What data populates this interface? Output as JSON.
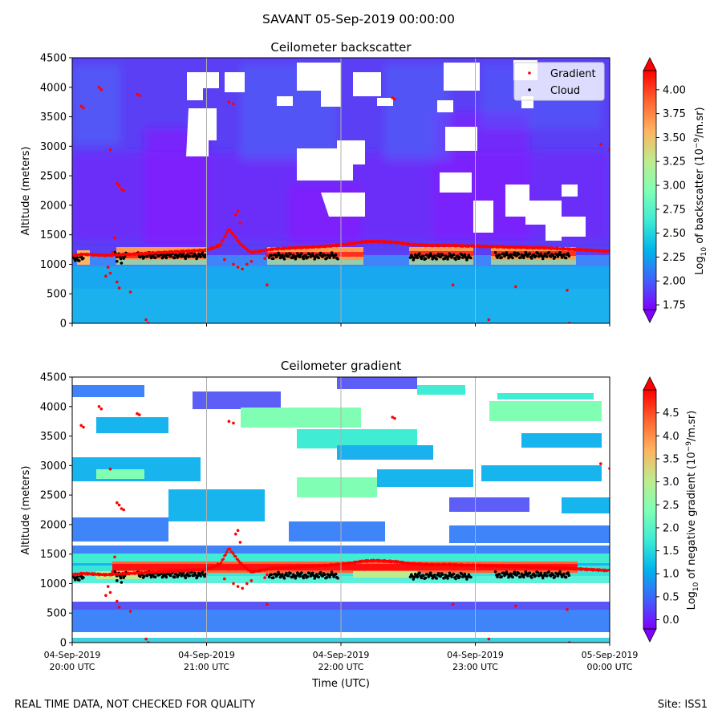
{
  "suptitle": "SAVANT 05-Sep-2019 00:00:00",
  "footer_left": "REAL TIME DATA, NOT CHECKED FOR QUALITY",
  "footer_right": "Site: ISS1",
  "colors": {
    "cloud_marker": "#000000",
    "gradient_marker": "#ff0000",
    "missing": "#ffffff"
  },
  "chart_data": [
    {
      "type": "heatmap",
      "title": "Ceilometer backscatter",
      "xlabel": "",
      "ylabel": "Altitude (meters)",
      "xlim": [
        0,
        240
      ],
      "ylim": [
        0,
        4500
      ],
      "yticks": [
        0,
        500,
        1000,
        1500,
        2000,
        2500,
        3000,
        3500,
        4000,
        4500
      ],
      "xticks": [
        0,
        60,
        120,
        180,
        240
      ],
      "colorbar": {
        "label_parts": [
          "Log",
          "10",
          " of backscatter (10",
          "−9",
          "/m.sr)"
        ],
        "range": [
          1.7,
          4.2
        ],
        "ticks": [
          "1.75",
          "2.00",
          "2.25",
          "2.50",
          "2.75",
          "3.00",
          "3.25",
          "3.50",
          "3.75",
          "4.00"
        ],
        "tick_values": [
          1.75,
          2.0,
          2.25,
          2.5,
          2.75,
          3.0,
          3.25,
          3.5,
          3.75,
          4.0
        ],
        "colormap": "rainbow"
      },
      "legend": {
        "placement": "top-right",
        "entries": [
          "Gradient",
          "Cloud"
        ]
      }
    },
    {
      "type": "heatmap",
      "title": "Ceilometer gradient",
      "xlabel": "Time (UTC)",
      "ylabel": "Altitude (meters)",
      "xlim": [
        0,
        240
      ],
      "ylim": [
        0,
        4500
      ],
      "yticks": [
        0,
        500,
        1000,
        1500,
        2000,
        2500,
        3000,
        3500,
        4000,
        4500
      ],
      "xticks": [
        0,
        60,
        120,
        180,
        240
      ],
      "xticklabels": [
        [
          "04-Sep-2019",
          "20:00 UTC"
        ],
        [
          "04-Sep-2019",
          "21:00 UTC"
        ],
        [
          "04-Sep-2019",
          "22:00 UTC"
        ],
        [
          "04-Sep-2019",
          "23:00 UTC"
        ],
        [
          "05-Sep-2019",
          "00:00 UTC"
        ]
      ],
      "colorbar": {
        "label_parts": [
          "Log",
          "10",
          " of negative gradient (10",
          "−9",
          "/m.sr)"
        ],
        "range": [
          -0.2,
          5.0
        ],
        "ticks": [
          "0.0",
          "0.5",
          "1.0",
          "1.5",
          "2.0",
          "2.5",
          "3.0",
          "3.5",
          "4.0",
          "4.5"
        ],
        "tick_values": [
          0.0,
          0.5,
          1.0,
          1.5,
          2.0,
          2.5,
          3.0,
          3.5,
          4.0,
          4.5
        ],
        "colormap": "rainbow"
      }
    }
  ],
  "series": {
    "gradient_heights": {
      "t": [
        0,
        5,
        10,
        15,
        20,
        25,
        30,
        35,
        40,
        45,
        50,
        55,
        60,
        63,
        66,
        70,
        72,
        75,
        78,
        80,
        85,
        90,
        95,
        100,
        105,
        110,
        115,
        120,
        125,
        130,
        135,
        140,
        145,
        150,
        155,
        160,
        165,
        170,
        175,
        180,
        185,
        190,
        195,
        200,
        205,
        210,
        215,
        220,
        225,
        230,
        235,
        240
      ],
      "z": [
        1150,
        1170,
        1160,
        1150,
        1160,
        1170,
        1180,
        1190,
        1200,
        1210,
        1220,
        1230,
        1240,
        1280,
        1320,
        1600,
        1500,
        1350,
        1250,
        1200,
        1230,
        1260,
        1270,
        1280,
        1290,
        1300,
        1310,
        1330,
        1350,
        1380,
        1390,
        1380,
        1370,
        1340,
        1330,
        1320,
        1320,
        1320,
        1310,
        1310,
        1300,
        1300,
        1290,
        1290,
        1280,
        1280,
        1270,
        1260,
        1250,
        1240,
        1230,
        1220
      ]
    },
    "gradient_outliers": [
      [
        12,
        4000
      ],
      [
        13,
        3960
      ],
      [
        4,
        3680
      ],
      [
        5,
        3650
      ],
      [
        29,
        3880
      ],
      [
        30,
        3860
      ],
      [
        70,
        3750
      ],
      [
        72,
        3720
      ],
      [
        143,
        3820
      ],
      [
        144,
        3800
      ],
      [
        17,
        2940
      ],
      [
        20,
        2370
      ],
      [
        21,
        2330
      ],
      [
        22,
        2270
      ],
      [
        23,
        2250
      ],
      [
        19,
        1450
      ],
      [
        18,
        1200
      ],
      [
        16,
        950
      ],
      [
        17,
        850
      ],
      [
        15,
        800
      ],
      [
        20,
        700
      ],
      [
        21,
        600
      ],
      [
        26,
        530
      ],
      [
        33,
        60
      ],
      [
        34,
        0
      ],
      [
        65,
        1330
      ],
      [
        68,
        1080
      ],
      [
        72,
        1000
      ],
      [
        74,
        950
      ],
      [
        76,
        920
      ],
      [
        78,
        1000
      ],
      [
        80,
        1050
      ],
      [
        86,
        1100
      ],
      [
        87,
        1150
      ],
      [
        73,
        1840
      ],
      [
        74,
        1900
      ],
      [
        75,
        1700
      ],
      [
        87,
        650
      ],
      [
        170,
        650
      ],
      [
        186,
        60
      ],
      [
        198,
        620
      ],
      [
        221,
        560
      ],
      [
        222,
        0
      ],
      [
        236,
        3030
      ],
      [
        240,
        2950
      ]
    ],
    "cloud_segments": [
      [
        0,
        5,
        1100
      ],
      [
        19,
        24,
        1150
      ],
      [
        29,
        60,
        1150
      ],
      [
        88,
        119,
        1140
      ],
      [
        151,
        178,
        1130
      ],
      [
        189,
        222,
        1150
      ]
    ],
    "cloud_extra": [
      [
        20,
        1050
      ],
      [
        22,
        1020
      ],
      [
        23,
        1100
      ],
      [
        24,
        1180
      ]
    ]
  }
}
